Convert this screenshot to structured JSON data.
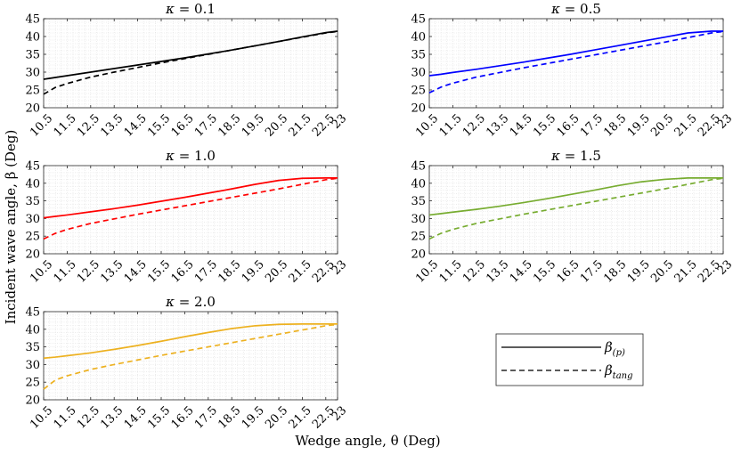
{
  "figure": {
    "ylabel": "Incident wave angle, β (Deg)",
    "xlabel": "Wedge angle, θ (Deg)"
  },
  "legend": {
    "solid_label": "β(p)",
    "solid_main": "β",
    "solid_sub": "(p)",
    "dashed_label": "βtang",
    "dashed_main": "β",
    "dashed_sub": "tang"
  },
  "chart_data": [
    {
      "type": "line",
      "title": "κ = 0.1",
      "title_kappa": "κ",
      "title_value": "= 0.1",
      "color": "#000000",
      "xlim": [
        10.5,
        23
      ],
      "ylim": [
        20,
        45
      ],
      "xticks": [
        "10.5",
        "11.5",
        "12.5",
        "13.5",
        "14.5",
        "15.5",
        "16.5",
        "17.5",
        "18.5",
        "19.5",
        "20.5",
        "21.5",
        "22.5",
        "23"
      ],
      "yticks": [
        "20",
        "25",
        "30",
        "35",
        "40",
        "45"
      ],
      "x": [
        10.5,
        11.0,
        11.5,
        12.5,
        13.5,
        14.5,
        15.5,
        16.5,
        17.5,
        18.5,
        19.5,
        20.5,
        21.5,
        22.5,
        23.0
      ],
      "series": [
        {
          "name": "β(p)",
          "style": "solid",
          "values": [
            28.0,
            28.5,
            29.0,
            30.0,
            31.0,
            32.0,
            33.0,
            34.0,
            35.1,
            36.2,
            37.4,
            38.6,
            39.9,
            41.1,
            41.5
          ]
        },
        {
          "name": "βtang",
          "style": "dashed",
          "values": [
            23.8,
            25.7,
            26.8,
            28.6,
            30.0,
            31.3,
            32.6,
            33.8,
            35.0,
            36.2,
            37.4,
            38.6,
            39.8,
            41.0,
            41.4
          ]
        }
      ]
    },
    {
      "type": "line",
      "title": "κ = 0.5",
      "title_kappa": "κ",
      "title_value": "= 0.5",
      "color": "#0000ff",
      "xlim": [
        10.5,
        23
      ],
      "ylim": [
        20,
        45
      ],
      "xticks": [
        "10.5",
        "11.5",
        "12.5",
        "13.5",
        "14.5",
        "15.5",
        "16.5",
        "17.5",
        "18.5",
        "19.5",
        "20.5",
        "21.5",
        "22.5",
        "23"
      ],
      "yticks": [
        "20",
        "25",
        "30",
        "35",
        "40",
        "45"
      ],
      "x": [
        10.5,
        11.0,
        11.5,
        12.5,
        13.5,
        14.5,
        15.5,
        16.5,
        17.5,
        18.5,
        19.5,
        20.5,
        21.5,
        22.5,
        23.0
      ],
      "series": [
        {
          "name": "β(p)",
          "style": "solid",
          "values": [
            29.0,
            29.4,
            29.9,
            30.8,
            31.8,
            32.8,
            33.9,
            35.0,
            36.2,
            37.4,
            38.6,
            39.8,
            41.0,
            41.5,
            41.5
          ]
        },
        {
          "name": "βtang",
          "style": "dashed",
          "values": [
            24.2,
            25.8,
            26.9,
            28.6,
            29.9,
            31.2,
            32.4,
            33.6,
            34.8,
            36.0,
            37.2,
            38.4,
            39.7,
            41.0,
            41.4
          ]
        }
      ]
    },
    {
      "type": "line",
      "title": "κ = 1.0",
      "title_kappa": "κ",
      "title_value": "= 1.0",
      "color": "#ff0000",
      "xlim": [
        10.5,
        23
      ],
      "ylim": [
        20,
        45
      ],
      "xticks": [
        "10.5",
        "11.5",
        "12.5",
        "13.5",
        "14.5",
        "15.5",
        "16.5",
        "17.5",
        "18.5",
        "19.5",
        "20.5",
        "21.5",
        "22.5",
        "23"
      ],
      "yticks": [
        "20",
        "25",
        "30",
        "35",
        "40",
        "45"
      ],
      "x": [
        10.5,
        11.0,
        11.5,
        12.5,
        13.5,
        14.5,
        15.5,
        16.5,
        17.5,
        18.5,
        19.5,
        20.5,
        21.5,
        22.5,
        23.0
      ],
      "series": [
        {
          "name": "β(p)",
          "style": "solid",
          "values": [
            30.2,
            30.6,
            31.0,
            31.9,
            32.8,
            33.8,
            34.9,
            36.0,
            37.2,
            38.4,
            39.7,
            40.8,
            41.4,
            41.5,
            41.5
          ]
        },
        {
          "name": "βtang",
          "style": "dashed",
          "values": [
            24.2,
            25.8,
            26.9,
            28.6,
            29.9,
            31.2,
            32.4,
            33.6,
            34.8,
            36.0,
            37.2,
            38.4,
            39.7,
            41.0,
            41.4
          ]
        }
      ]
    },
    {
      "type": "line",
      "title": "κ = 1.5",
      "title_kappa": "κ",
      "title_value": "= 1.5",
      "color": "#77ac30",
      "xlim": [
        10.5,
        23
      ],
      "ylim": [
        20,
        45
      ],
      "xticks": [
        "10.5",
        "11.5",
        "12.5",
        "13.5",
        "14.5",
        "15.5",
        "16.5",
        "17.5",
        "18.5",
        "19.5",
        "20.5",
        "21.5",
        "22.5",
        "23"
      ],
      "yticks": [
        "20",
        "25",
        "30",
        "35",
        "40",
        "45"
      ],
      "x": [
        10.5,
        11.0,
        11.5,
        12.5,
        13.5,
        14.5,
        15.5,
        16.5,
        17.5,
        18.5,
        19.5,
        20.5,
        21.5,
        22.5,
        23.0
      ],
      "series": [
        {
          "name": "β(p)",
          "style": "solid",
          "values": [
            31.0,
            31.4,
            31.8,
            32.6,
            33.5,
            34.5,
            35.6,
            36.8,
            38.0,
            39.3,
            40.4,
            41.1,
            41.5,
            41.5,
            41.5
          ]
        },
        {
          "name": "βtang",
          "style": "dashed",
          "values": [
            24.2,
            25.8,
            26.9,
            28.6,
            29.9,
            31.2,
            32.4,
            33.6,
            34.8,
            36.0,
            37.2,
            38.4,
            39.7,
            41.0,
            41.4
          ]
        }
      ]
    },
    {
      "type": "line",
      "title": "κ = 2.0",
      "title_kappa": "κ",
      "title_value": "= 2.0",
      "color": "#edb120",
      "xlim": [
        10.5,
        23
      ],
      "ylim": [
        20,
        45
      ],
      "xticks": [
        "10.5",
        "11.5",
        "12.5",
        "13.5",
        "14.5",
        "15.5",
        "16.5",
        "17.5",
        "18.5",
        "19.5",
        "20.5",
        "21.5",
        "22.5",
        "23"
      ],
      "yticks": [
        "20",
        "25",
        "30",
        "35",
        "40",
        "45"
      ],
      "x": [
        10.5,
        11.0,
        11.5,
        12.5,
        13.5,
        14.5,
        15.5,
        16.5,
        17.5,
        18.5,
        19.5,
        20.5,
        21.5,
        22.5,
        23.0
      ],
      "series": [
        {
          "name": "β(p)",
          "style": "solid",
          "values": [
            31.8,
            32.1,
            32.5,
            33.3,
            34.3,
            35.4,
            36.6,
            37.9,
            39.1,
            40.2,
            41.0,
            41.4,
            41.5,
            41.5,
            41.5
          ]
        },
        {
          "name": "βtang",
          "style": "dashed",
          "values": [
            23.0,
            25.6,
            26.8,
            28.6,
            30.0,
            31.3,
            32.6,
            33.8,
            35.0,
            36.2,
            37.4,
            38.6,
            39.8,
            41.0,
            41.4
          ]
        }
      ]
    }
  ]
}
